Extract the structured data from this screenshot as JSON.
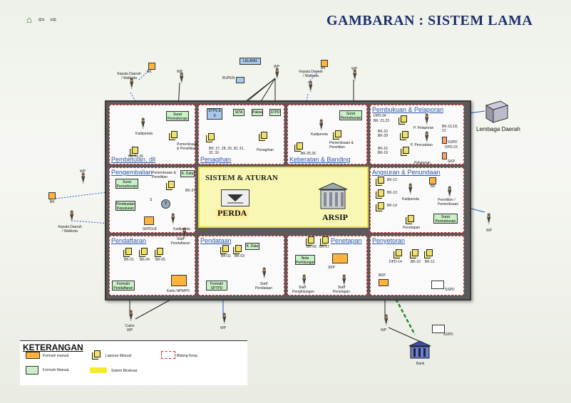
{
  "header": {
    "title": "GAMBARAN : SISTEM LAMA",
    "nav": {
      "home": "⌂",
      "back": "⇦",
      "forward": "⇨"
    }
  },
  "external": {
    "kepala_left": "Kepala Daerah / Walikota",
    "kepala_mid": "Kepala Daerah / Walikota",
    "kepala_mid2": "Kepala Daerah / Walikota",
    "bk_left1": "BK",
    "bk_left2": "BK",
    "bk_top1": "BK",
    "bk_top2": "BK",
    "wp_top1": "WP",
    "wp_top2": "WP",
    "wp_top3": "WP",
    "wp_left": "WP",
    "wp_right": "WP",
    "lelang": "LELANG",
    "bupen": "BUPEN",
    "lembaga": "Lembaga Daerah",
    "calon_wp": "Calon WP",
    "wp_bottom": "WP",
    "wp_bottom_right": "WP",
    "bank": "Bank",
    "sspd1": "SSPD",
    "sspd2": "SSPD"
  },
  "panels": {
    "pembetulan": {
      "title": "Pembetulan, dll",
      "surat": "Surat Permohonan",
      "kadipenda": "Kadipenda",
      "periksa": "Pemeriksaan & Penelitian",
      "bk": "BK-15,36"
    },
    "penagihan": {
      "title": "Penagihan",
      "stps": "STPS & S",
      "sita": "SITA",
      "paksa": "Paksa",
      "stpd": "STPD",
      "bk": "BK: 27, 28, 29, 30, 31, 32, 33",
      "penagihan": "Penagihan"
    },
    "keberatan": {
      "title": "Keberatan & Banding",
      "surat": "Surat Permohonan",
      "kadipenda": "Kadipenda",
      "periksa": "Pemeriksaan & Penelitian",
      "bk": "BK-25,26"
    },
    "pembukuan": {
      "title": "Pembukuan & Pelaporan",
      "dpd24": "DPD-24",
      "bk2123": "BK: 21,23",
      "bk10": "BK-10",
      "bk39": "BK-39",
      "bk16": "BK-16",
      "bk19": "BK-19",
      "bk161821": "BK-16,18, 21",
      "sspd": "SSPD",
      "dpd23": "DPD-23",
      "skp": "SKP",
      "pelaporan": "P. Pelaporan",
      "pencatatan": "P. Pencatatan",
      "pelaporan2": "Pelaporan"
    },
    "pengembalian": {
      "title": "Pengembalian",
      "surat": "Surat Permohonan",
      "periksa": "Pemeriksaan & Penelitian",
      "kdata": "K. Data",
      "bk37": "BK-37",
      "keputusan": "Pembuatan Keputusan",
      "kadipenda": "Kadipenda",
      "skpdlb": "SKPDLB",
      "s": "S"
    },
    "angsuran": {
      "title": "Angsuran & Penundaan",
      "bk12": "BK-12",
      "bk13": "BK-13",
      "bk14": "BK-14",
      "bk": "BK",
      "kadipenda": "Kadipenda",
      "periksa": "Penelitian / Pemeriksaan",
      "penetapan": "Penetapan",
      "surat": "Surat Permohonan"
    },
    "center": {
      "title": "SISTEM & ATURAN",
      "perda": "PERDA",
      "arsip": "ARSIP"
    },
    "pendaftaran": {
      "title": "Pendaftaran",
      "staff": "Staff Pendaftaran",
      "bk01": "BK-01",
      "bk04": "BK-04",
      "bk05": "BK-05",
      "formulir": "Formulir Pendaftaran",
      "kartu": "Kartu NPWPD"
    },
    "pendataan": {
      "title": "Pendataan",
      "kdata": "K. Data",
      "bk02": "BK-02",
      "bk03": "BK-03",
      "staff": "Staff Pendataan",
      "formulir": "Formulir SPTPD"
    },
    "penetapan": {
      "title": "Penetapan",
      "bk06": "BK-06",
      "bk07": "BK-07",
      "nota": "Nota Perhitungan",
      "skp": "SKP",
      "staff1": "Staff Penghitungan",
      "staff2": "Staff Penetapan"
    },
    "penyetoran": {
      "title": "Penyetoran",
      "dpd14": "DPD-14",
      "bk10": "BK-10",
      "bk11": "BK-11",
      "bkp": "BKP"
    }
  },
  "legend": {
    "title": "KETERANGAN",
    "formulir_manual1": "Formulir manual.",
    "laporan_manual": "Laporan Manual.",
    "bidang_kerja": "Bidang Kerja.",
    "formulir_manual2": "Formulir Manual.",
    "sistem_birokrasi": "Sistem Birokrasi."
  }
}
